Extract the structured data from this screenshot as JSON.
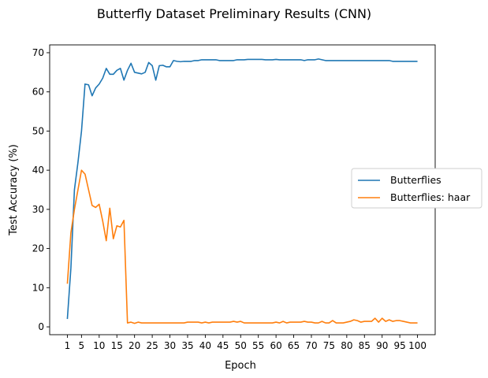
{
  "chart_data": {
    "type": "line",
    "title": "Butterfly Dataset Preliminary Results (CNN)",
    "xlabel": "Epoch",
    "ylabel": "Test Accuracy (%)",
    "xlim": [
      -4,
      105
    ],
    "ylim": [
      -2,
      72
    ],
    "xticks": [
      1,
      5,
      10,
      15,
      20,
      25,
      30,
      35,
      40,
      45,
      50,
      55,
      60,
      65,
      70,
      75,
      80,
      85,
      90,
      95,
      100
    ],
    "yticks": [
      0,
      10,
      20,
      30,
      40,
      50,
      60,
      70
    ],
    "grid": false,
    "legend_position": "center-right",
    "series": [
      {
        "name": "Butterflies",
        "color": "#1f77b4",
        "x": [
          1,
          2,
          3,
          4,
          5,
          6,
          7,
          8,
          9,
          10,
          11,
          12,
          13,
          14,
          15,
          16,
          17,
          18,
          19,
          20,
          21,
          22,
          23,
          24,
          25,
          26,
          27,
          28,
          29,
          30,
          31,
          32,
          33,
          34,
          35,
          36,
          37,
          38,
          39,
          40,
          41,
          42,
          43,
          44,
          45,
          46,
          47,
          48,
          49,
          50,
          51,
          52,
          53,
          54,
          55,
          56,
          57,
          58,
          59,
          60,
          61,
          62,
          63,
          64,
          65,
          66,
          67,
          68,
          69,
          70,
          71,
          72,
          73,
          74,
          75,
          76,
          77,
          78,
          79,
          80,
          81,
          82,
          83,
          84,
          85,
          86,
          87,
          88,
          89,
          90,
          91,
          92,
          93,
          94,
          95,
          96,
          97,
          98,
          99,
          100
        ],
        "y": [
          2,
          15,
          35,
          42,
          50,
          62,
          61.8,
          59,
          61,
          62,
          63.5,
          66,
          64.5,
          64.5,
          65.5,
          66,
          63,
          65.5,
          67.3,
          65,
          64.8,
          64.6,
          65,
          67.5,
          66.7,
          63,
          66.7,
          66.8,
          66.4,
          66.4,
          68,
          67.8,
          67.7,
          67.8,
          67.8,
          67.8,
          68,
          68,
          68.2,
          68.2,
          68.2,
          68.2,
          68.2,
          68,
          68,
          68,
          68,
          68,
          68.2,
          68.2,
          68.2,
          68.3,
          68.3,
          68.3,
          68.3,
          68.3,
          68.2,
          68.2,
          68.2,
          68.3,
          68.2,
          68.2,
          68.2,
          68.2,
          68.2,
          68.2,
          68.2,
          68,
          68.2,
          68.2,
          68.2,
          68.4,
          68.2,
          68,
          68,
          68,
          68,
          68,
          68,
          68,
          68,
          68,
          68,
          68,
          68,
          68,
          68,
          68,
          68,
          68,
          68,
          68,
          67.8,
          67.8,
          67.8,
          67.8,
          67.8,
          67.8,
          67.8,
          67.8
        ]
      },
      {
        "name": "Butterflies: haar",
        "color": "#ff7f0e",
        "x": [
          1,
          2,
          3,
          4,
          5,
          6,
          7,
          8,
          9,
          10,
          11,
          12,
          13,
          14,
          15,
          16,
          17,
          18,
          19,
          20,
          21,
          22,
          23,
          24,
          25,
          26,
          27,
          28,
          29,
          30,
          31,
          32,
          33,
          34,
          35,
          36,
          37,
          38,
          39,
          40,
          41,
          42,
          43,
          44,
          45,
          46,
          47,
          48,
          49,
          50,
          51,
          52,
          53,
          54,
          55,
          56,
          57,
          58,
          59,
          60,
          61,
          62,
          63,
          64,
          65,
          66,
          67,
          68,
          69,
          70,
          71,
          72,
          73,
          74,
          75,
          76,
          77,
          78,
          79,
          80,
          81,
          82,
          83,
          84,
          85,
          86,
          87,
          88,
          89,
          90,
          91,
          92,
          93,
          94,
          95,
          96,
          97,
          98,
          99,
          100
        ],
        "y": [
          11,
          24,
          30,
          35,
          40,
          39,
          35,
          31,
          30.5,
          31.3,
          27,
          22,
          30.3,
          22.5,
          25.8,
          25.5,
          27.2,
          1,
          1.2,
          0.9,
          1.2,
          1,
          1,
          1,
          1,
          1,
          1,
          1,
          1,
          1,
          1,
          1,
          1,
          1,
          1.2,
          1.2,
          1.2,
          1.2,
          1,
          1.2,
          1,
          1.2,
          1.2,
          1.2,
          1.2,
          1.2,
          1.2,
          1.4,
          1.2,
          1.4,
          1,
          1,
          1,
          1,
          1,
          1,
          1,
          1,
          1,
          1.2,
          1,
          1.4,
          1,
          1.2,
          1.2,
          1.2,
          1.2,
          1.4,
          1.2,
          1.2,
          1,
          1,
          1.4,
          1,
          1,
          1.6,
          1,
          1,
          1,
          1.2,
          1.4,
          1.8,
          1.6,
          1.2,
          1.4,
          1.4,
          1.4,
          2.2,
          1.2,
          2.2,
          1.4,
          1.8,
          1.4,
          1.6,
          1.6,
          1.4,
          1.2,
          1,
          1,
          1
        ]
      }
    ]
  }
}
